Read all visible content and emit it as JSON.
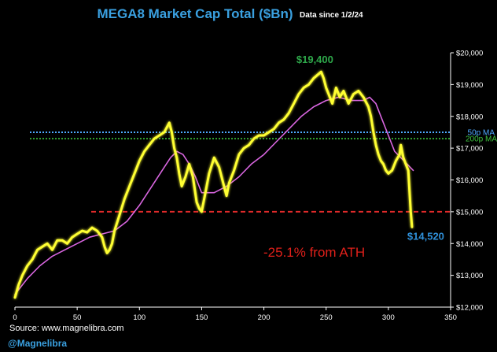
{
  "colors": {
    "background": "#000000",
    "price_line": "#ffff33",
    "ma_line": "#d966e0",
    "title": "#3aa0e0",
    "ath_label": "#2ea84a",
    "current_label": "#2f8fd8",
    "drawdown_label": "#e0201a",
    "ma50_line": "#4fa9ff",
    "ma200_line": "#3ec43e",
    "support_line": "#e02a2a",
    "handle": "#3aa0e0",
    "text": "#ffffff"
  },
  "header": {
    "title": "MEGA8 Market Cap Total ($Bn)",
    "subtitle": "Data since 1/2/24"
  },
  "footer": {
    "source": "Source: www.magnelibra.com",
    "handle": "@Magnelibra"
  },
  "chart_data": {
    "type": "line",
    "title": "MEGA8 Market Cap Total ($Bn)",
    "xlabel": "",
    "ylabel": "",
    "xlim": [
      0,
      350
    ],
    "ylim": [
      12000,
      20000
    ],
    "x_ticks": [
      0,
      50,
      100,
      150,
      200,
      250,
      300,
      350
    ],
    "x_tick_labels": [
      "0",
      "50",
      "100",
      "150",
      "200",
      "250",
      "300",
      "350"
    ],
    "y_ticks": [
      12000,
      13000,
      14000,
      15000,
      16000,
      17000,
      18000,
      19000,
      20000
    ],
    "y_tick_labels": [
      "$12,000",
      "$13,000",
      "$14,000",
      "$15,000",
      "$16,000",
      "$17,000",
      "$18,000",
      "$19,000",
      "$20,000"
    ],
    "grid": false,
    "series": [
      {
        "name": "MEGA8 Market Cap",
        "x": [
          0,
          3,
          6,
          10,
          14,
          18,
          22,
          26,
          30,
          34,
          38,
          42,
          46,
          50,
          54,
          58,
          62,
          66,
          70,
          72,
          74,
          76,
          78,
          80,
          84,
          88,
          92,
          96,
          100,
          104,
          108,
          112,
          116,
          120,
          124,
          126,
          128,
          130,
          132,
          134,
          137,
          140,
          143,
          146,
          148,
          150,
          153,
          156,
          160,
          164,
          168,
          170,
          172,
          176,
          180,
          184,
          188,
          192,
          196,
          200,
          204,
          208,
          212,
          216,
          220,
          224,
          228,
          232,
          236,
          240,
          243,
          246,
          248,
          250,
          252,
          255,
          258,
          261,
          264,
          268,
          272,
          276,
          280,
          284,
          286,
          288,
          290,
          292,
          294,
          296,
          298,
          300,
          303,
          306,
          309,
          310,
          312,
          314,
          316,
          318,
          319
        ],
        "values": [
          12300,
          12700,
          13000,
          13300,
          13500,
          13800,
          13900,
          14000,
          13800,
          14100,
          14100,
          14000,
          14200,
          14300,
          14400,
          14350,
          14500,
          14400,
          14200,
          13900,
          13700,
          13800,
          14000,
          14400,
          14900,
          15400,
          15800,
          16200,
          16600,
          16900,
          17100,
          17300,
          17400,
          17500,
          17800,
          17500,
          17000,
          16700,
          16200,
          15800,
          16100,
          16500,
          16100,
          15300,
          15100,
          15000,
          15600,
          16200,
          16700,
          16400,
          15800,
          15500,
          15900,
          16300,
          16800,
          17000,
          17100,
          17300,
          17400,
          17400,
          17500,
          17600,
          17800,
          17900,
          18100,
          18400,
          18700,
          18900,
          19000,
          19200,
          19300,
          19400,
          19200,
          18900,
          18700,
          18400,
          18900,
          18600,
          18800,
          18400,
          18700,
          18800,
          18600,
          18300,
          18000,
          17500,
          17100,
          16800,
          16600,
          16500,
          16300,
          16200,
          16300,
          16600,
          16800,
          17100,
          16700,
          16500,
          16300,
          15000,
          14520
        ]
      },
      {
        "name": "MA",
        "x": [
          0,
          10,
          20,
          30,
          40,
          50,
          60,
          70,
          80,
          90,
          100,
          110,
          120,
          125,
          130,
          135,
          140,
          145,
          150,
          160,
          170,
          180,
          190,
          200,
          210,
          220,
          230,
          240,
          250,
          260,
          270,
          280,
          285,
          290,
          295,
          300,
          305,
          310,
          315,
          320
        ],
        "values": [
          12400,
          12900,
          13300,
          13600,
          13800,
          14000,
          14200,
          14300,
          14400,
          14700,
          15200,
          15800,
          16400,
          16700,
          16900,
          16800,
          16500,
          16100,
          15600,
          15600,
          15800,
          16100,
          16500,
          16800,
          17200,
          17600,
          18000,
          18300,
          18500,
          18600,
          18500,
          18500,
          18600,
          18400,
          17900,
          17400,
          16900,
          16700,
          16500,
          16300
        ]
      }
    ],
    "reference_lines": [
      {
        "name": "50p MA",
        "y": 17500
      },
      {
        "name": "200p MA",
        "y": 17300
      },
      {
        "name": "support",
        "y": 15000
      }
    ],
    "annotations": {
      "ath_value": "$19,400",
      "ath_point": {
        "x": 246,
        "y": 19400
      },
      "current_value": "$14,520",
      "current_point": {
        "x": 319,
        "y": 14520
      },
      "drawdown": "-25.1%  from ATH",
      "ma50_label": "50p MA",
      "ma200_label": "200p MA"
    }
  }
}
